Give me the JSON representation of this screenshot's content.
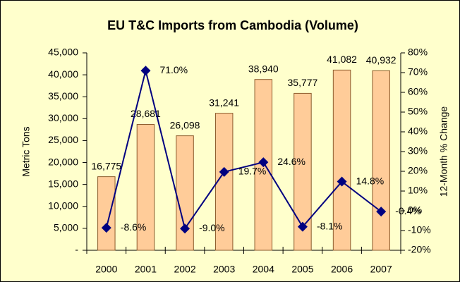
{
  "chart_data": {
    "type": "bar",
    "title": "EU T&C Imports from Cambodia (Volume)",
    "y_label": "Metric Tons",
    "y2_label": "12-Month % Change",
    "categories": [
      "2000",
      "2001",
      "2002",
      "2003",
      "2004",
      "2005",
      "2006",
      "2007"
    ],
    "series": [
      {
        "type": "bar",
        "color": "#ffcc99",
        "values": [
          16775,
          28681,
          26098,
          31241,
          38940,
          35777,
          41082,
          40932
        ],
        "value_labels": [
          "16,775",
          "28,681",
          "26,098",
          "31,241",
          "38,940",
          "35,777",
          "41,082",
          "40,932"
        ]
      },
      {
        "type": "line",
        "axis": "y2",
        "color": "#000080",
        "values": [
          -8.6,
          71.0,
          -9.0,
          19.7,
          24.6,
          -8.1,
          14.8,
          -0.4
        ],
        "value_labels": [
          "-8.6%",
          "71.0%",
          "-9.0%",
          "19.7%",
          "24.6%",
          "-8.1%",
          "14.8%",
          "-0.4%"
        ]
      }
    ],
    "ylim": [
      0,
      45000
    ],
    "yticks": [
      {
        "value": 0,
        "label": "-"
      },
      {
        "value": 5000,
        "label": "5,000"
      },
      {
        "value": 10000,
        "label": "10,000"
      },
      {
        "value": 15000,
        "label": "15,000"
      },
      {
        "value": 20000,
        "label": "20,000"
      },
      {
        "value": 25000,
        "label": "25,000"
      },
      {
        "value": 30000,
        "label": "30,000"
      },
      {
        "value": 35000,
        "label": "35,000"
      },
      {
        "value": 40000,
        "label": "40,000"
      },
      {
        "value": 45000,
        "label": "45,000"
      }
    ],
    "y2lim": [
      -20,
      80
    ],
    "y2ticks": [
      {
        "value": -20,
        "label": "-20%"
      },
      {
        "value": -10,
        "label": "-10%"
      },
      {
        "value": 0,
        "label": "0%"
      },
      {
        "value": 10,
        "label": "10%"
      },
      {
        "value": 20,
        "label": "20%"
      },
      {
        "value": 30,
        "label": "30%"
      },
      {
        "value": 40,
        "label": "40%"
      },
      {
        "value": 50,
        "label": "50%"
      },
      {
        "value": 60,
        "label": "60%"
      },
      {
        "value": 70,
        "label": "70%"
      },
      {
        "value": 80,
        "label": "80%"
      }
    ]
  }
}
